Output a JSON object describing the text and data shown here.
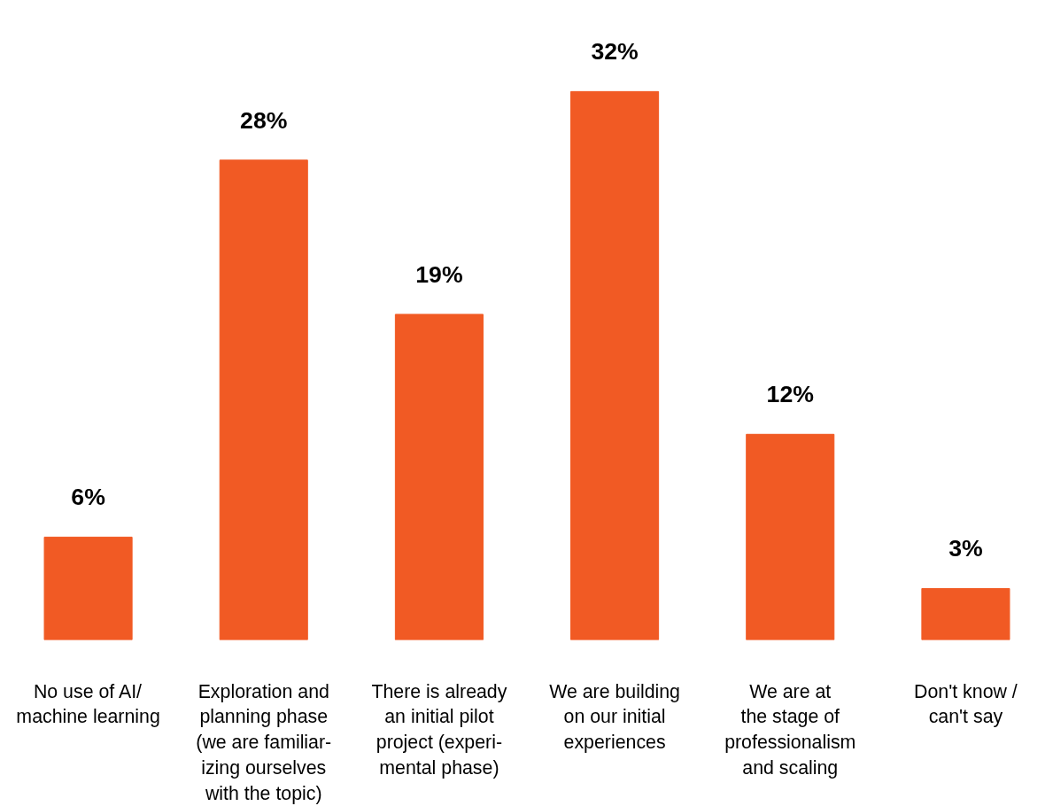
{
  "chart_data": {
    "type": "bar",
    "categories": [
      "No use of AI/\nmachine learning",
      "Exploration and\nplanning phase\n(we are familiar-\nizing ourselves\nwith the topic)",
      "There is already\nan initial pilot\nproject (experi-\nmental phase)",
      "We are building\non our initial\nexperiences",
      "We are at\nthe stage of\nprofessionalism\nand scaling",
      "Don't know /\ncan't say"
    ],
    "values": [
      6,
      28,
      19,
      32,
      12,
      3
    ],
    "value_labels": [
      "6%",
      "28%",
      "19%",
      "32%",
      "12%",
      "3%"
    ],
    "color": "#f15a24",
    "grid": false
  }
}
